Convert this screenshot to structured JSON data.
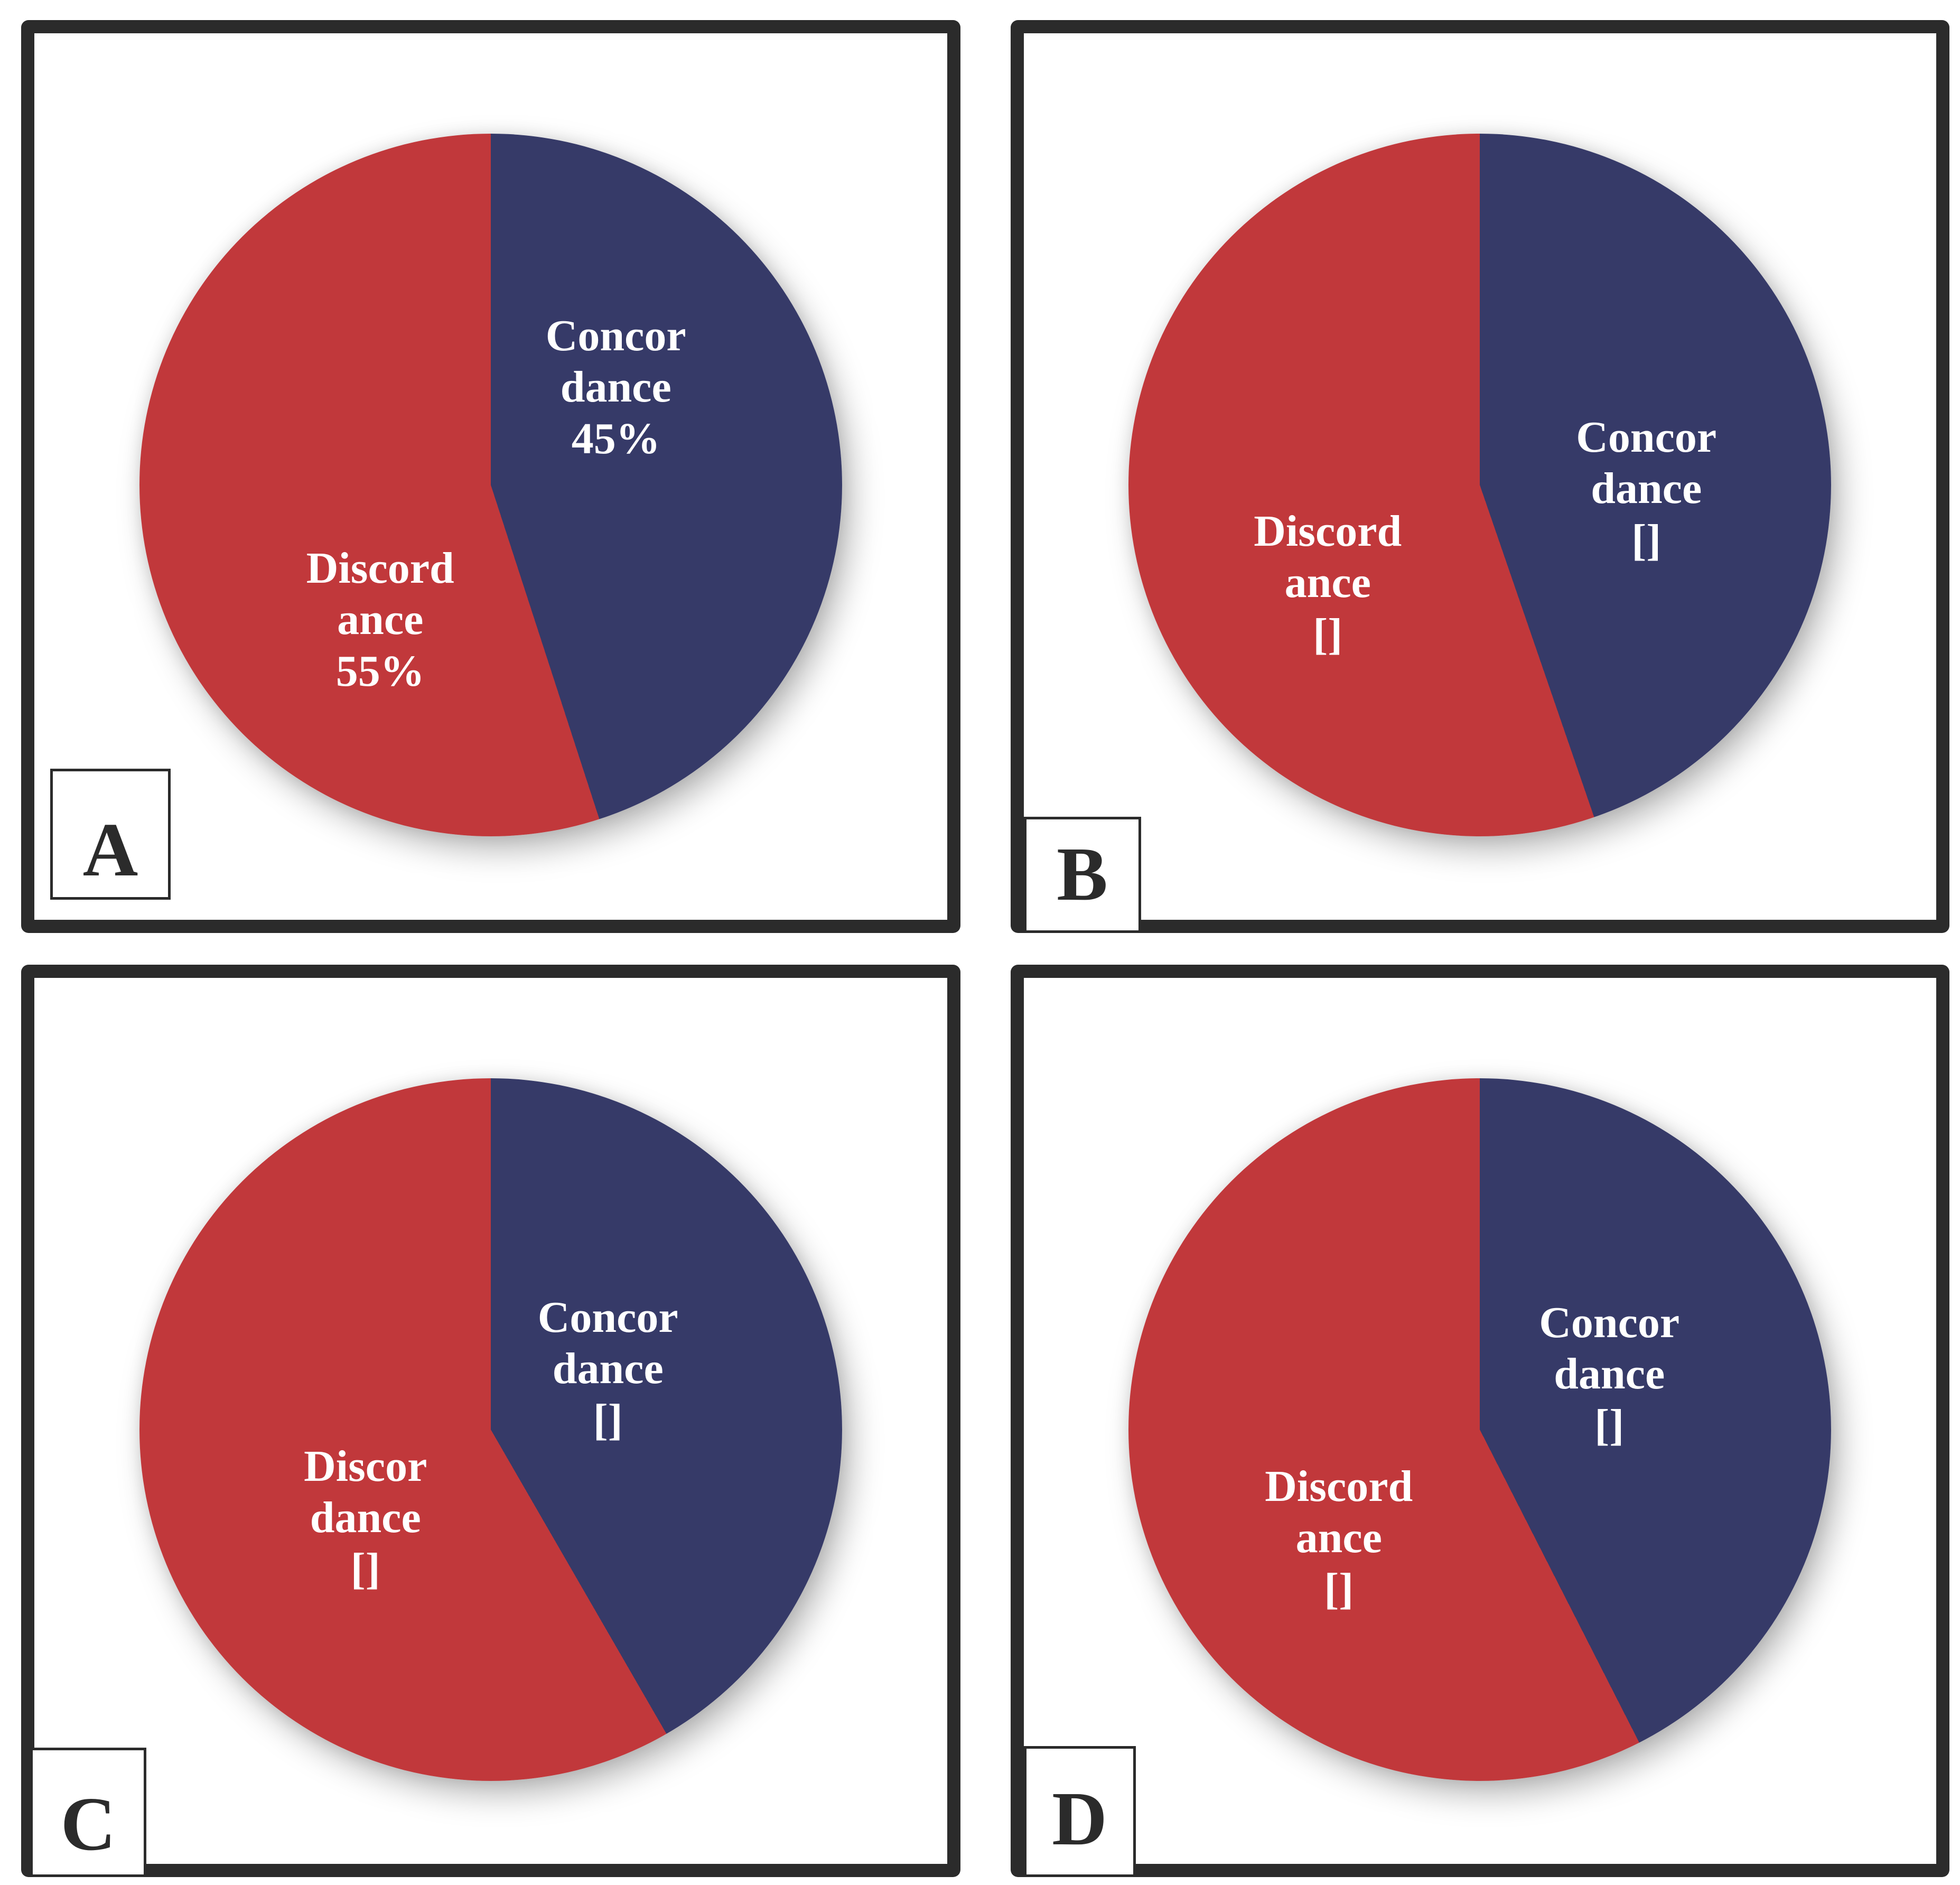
{
  "figure": {
    "panels": [
      {
        "panel_label": "A",
        "blue_deg": 162,
        "concordance": {
          "name": "Concordance",
          "label": "Concor\ndance\n45%",
          "value_label": "45%",
          "percent": 45,
          "color": "#363A68"
        },
        "discordance": {
          "name": "Discordance",
          "label": "Discord\nance\n55%",
          "value_label": "55%",
          "percent": 55,
          "color": "#C1383B"
        }
      },
      {
        "panel_label": "B",
        "blue_deg": 161,
        "concordance": {
          "name": "Concordance",
          "label": "Concor\ndance\n[]",
          "value_label": "[]",
          "percent_estimated": 44.7,
          "color": "#363A68"
        },
        "discordance": {
          "name": "Discordance",
          "label": "Discord\nance\n[]",
          "value_label": "[]",
          "percent_estimated": 55.3,
          "color": "#C1383B"
        }
      },
      {
        "panel_label": "C",
        "blue_deg": 150,
        "concordance": {
          "name": "Concordance",
          "label": "Concor\ndance\n[]",
          "value_label": "[]",
          "percent_estimated": 41.7,
          "color": "#363A68"
        },
        "discordance": {
          "name": "Discordance",
          "label": "Discor\ndance\n[]",
          "value_label": "[]",
          "percent_estimated": 58.3,
          "color": "#C1383B"
        }
      },
      {
        "panel_label": "D",
        "blue_deg": 153,
        "concordance": {
          "name": "Concordance",
          "label": "Concor\ndance\n[]",
          "value_label": "[]",
          "percent_estimated": 42.5,
          "color": "#363A68"
        },
        "discordance": {
          "name": "Discordance",
          "label": "Discord\nance\n[]",
          "value_label": "[]",
          "percent_estimated": 57.5,
          "color": "#C1383B"
        }
      }
    ]
  },
  "chart_data": [
    {
      "type": "pie",
      "panel": "A",
      "labels": [
        "Concordance",
        "Discordance"
      ],
      "values": [
        45,
        55
      ],
      "value_labels_shown": [
        "45%",
        "55%"
      ],
      "colors": [
        "#363A68",
        "#C1383B"
      ],
      "start_angle_deg": 0,
      "direction": "clockwise",
      "legend_position": "inside-slices"
    },
    {
      "type": "pie",
      "panel": "B",
      "labels": [
        "Concordance",
        "Discordance"
      ],
      "values_estimated_from_arc": [
        44.7,
        55.3
      ],
      "value_labels_shown": [
        "[]",
        "[]"
      ],
      "colors": [
        "#363A68",
        "#C1383B"
      ],
      "start_angle_deg": 0,
      "direction": "clockwise",
      "legend_position": "inside-slices"
    },
    {
      "type": "pie",
      "panel": "C",
      "labels": [
        "Concordance",
        "Discordance"
      ],
      "values_estimated_from_arc": [
        41.7,
        58.3
      ],
      "value_labels_shown": [
        "[]",
        "[]"
      ],
      "colors": [
        "#363A68",
        "#C1383B"
      ],
      "start_angle_deg": 0,
      "direction": "clockwise",
      "legend_position": "inside-slices"
    },
    {
      "type": "pie",
      "panel": "D",
      "labels": [
        "Concordance",
        "Discordance"
      ],
      "values_estimated_from_arc": [
        42.5,
        57.5
      ],
      "value_labels_shown": [
        "[]",
        "[]"
      ],
      "colors": [
        "#363A68",
        "#C1383B"
      ],
      "start_angle_deg": 0,
      "direction": "clockwise",
      "legend_position": "inside-slices"
    }
  ]
}
